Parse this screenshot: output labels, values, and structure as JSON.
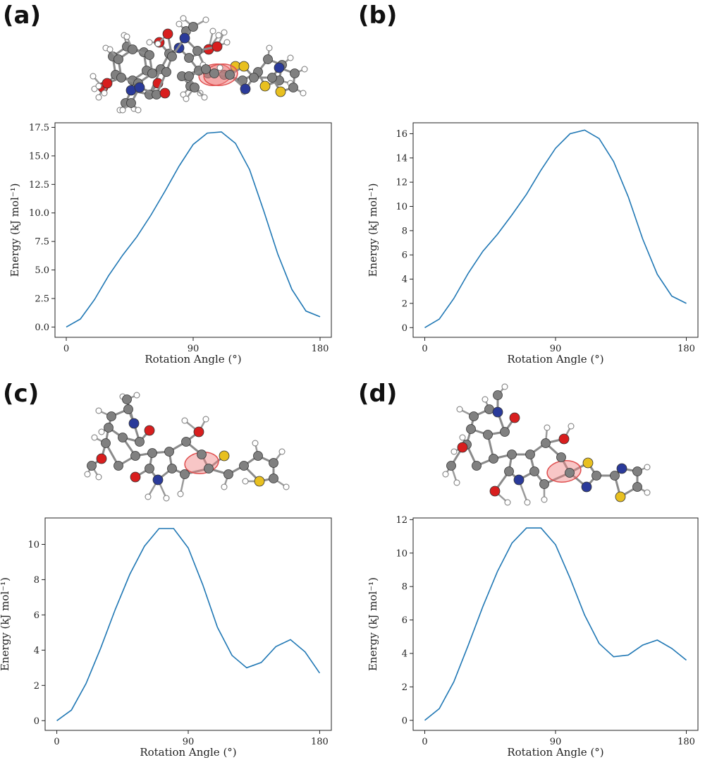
{
  "panels": [
    {
      "label": "(a)"
    },
    {
      "label": "(b)"
    },
    {
      "label": "(c)"
    },
    {
      "label": "(d)"
    }
  ],
  "colors": {
    "line": "#1f77b4",
    "highlight": "#f08080",
    "carbon": "#808080",
    "hydrogen": "#ffffff",
    "oxygen": "#d81e1e",
    "nitrogen": "#2a3a9a",
    "sulfur": "#e8c020"
  },
  "chart_data": [
    {
      "type": "line",
      "title": "",
      "xlabel": "Rotation Angle (°)",
      "ylabel": "Energy (kJ mol⁻¹)",
      "xlim": [
        -8,
        188
      ],
      "ylim": [
        -0.9,
        17.9
      ],
      "xticks": [
        0,
        90,
        180
      ],
      "yticks": [
        0.0,
        2.5,
        5.0,
        7.5,
        10.0,
        12.5,
        15.0,
        17.5
      ],
      "ytick_labels": [
        "0.0",
        "2.5",
        "5.0",
        "7.5",
        "10.0",
        "12.5",
        "15.0",
        "17.5"
      ],
      "x": [
        0,
        10,
        20,
        30,
        40,
        50,
        60,
        70,
        80,
        90,
        100,
        110,
        120,
        130,
        140,
        150,
        160,
        170,
        180
      ],
      "series": [
        {
          "values": [
            0.0,
            0.7,
            2.4,
            4.5,
            6.3,
            7.9,
            9.8,
            11.9,
            14.1,
            16.0,
            17.0,
            17.1,
            16.1,
            13.8,
            10.2,
            6.4,
            3.3,
            1.4,
            0.9
          ]
        }
      ]
    },
    {
      "type": "line",
      "title": "",
      "xlabel": "Rotation Angle (°)",
      "ylabel": "Energy (kJ mol⁻¹)",
      "xlim": [
        -8,
        188
      ],
      "ylim": [
        -0.8,
        16.9
      ],
      "xticks": [
        0,
        90,
        180
      ],
      "yticks": [
        0,
        2,
        4,
        6,
        8,
        10,
        12,
        14,
        16
      ],
      "ytick_labels": [
        "0",
        "2",
        "4",
        "6",
        "8",
        "10",
        "12",
        "14",
        "16"
      ],
      "x": [
        0,
        10,
        20,
        30,
        40,
        50,
        60,
        70,
        80,
        90,
        100,
        110,
        120,
        130,
        140,
        150,
        160,
        170,
        180
      ],
      "series": [
        {
          "values": [
            0.0,
            0.7,
            2.4,
            4.5,
            6.3,
            7.7,
            9.3,
            11.0,
            13.0,
            14.8,
            16.0,
            16.3,
            15.6,
            13.7,
            10.8,
            7.3,
            4.4,
            2.6,
            2.0
          ]
        }
      ]
    },
    {
      "type": "line",
      "title": "",
      "xlabel": "Rotation Angle (°)",
      "ylabel": "Energy (kJ mol⁻¹)",
      "xlim": [
        -8,
        188
      ],
      "ylim": [
        -0.55,
        11.5
      ],
      "xticks": [
        0,
        90,
        180
      ],
      "yticks": [
        0,
        2,
        4,
        6,
        8,
        10
      ],
      "ytick_labels": [
        "0",
        "2",
        "4",
        "6",
        "8",
        "10"
      ],
      "x": [
        0,
        10,
        20,
        30,
        40,
        50,
        60,
        70,
        80,
        90,
        100,
        110,
        120,
        130,
        140,
        150,
        160,
        170,
        180
      ],
      "series": [
        {
          "values": [
            0.0,
            0.6,
            2.1,
            4.1,
            6.3,
            8.3,
            9.9,
            10.9,
            10.9,
            9.8,
            7.7,
            5.3,
            3.7,
            3.0,
            3.3,
            4.2,
            4.6,
            3.9,
            2.7
          ]
        }
      ]
    },
    {
      "type": "line",
      "title": "",
      "xlabel": "Rotation Angle (°)",
      "ylabel": "Energy (kJ mol⁻¹)",
      "xlim": [
        -8,
        188
      ],
      "ylim": [
        -0.6,
        12.1
      ],
      "xticks": [
        0,
        90,
        180
      ],
      "yticks": [
        0,
        2,
        4,
        6,
        8,
        10,
        12
      ],
      "ytick_labels": [
        "0",
        "2",
        "4",
        "6",
        "8",
        "10",
        "12"
      ],
      "x": [
        0,
        10,
        20,
        30,
        40,
        50,
        60,
        70,
        80,
        90,
        100,
        110,
        120,
        130,
        140,
        150,
        160,
        170,
        180
      ],
      "series": [
        {
          "values": [
            0.0,
            0.7,
            2.3,
            4.5,
            6.8,
            8.9,
            10.6,
            11.5,
            11.5,
            10.5,
            8.5,
            6.3,
            4.6,
            3.8,
            3.9,
            4.5,
            4.8,
            4.3,
            3.6
          ]
        }
      ]
    }
  ]
}
